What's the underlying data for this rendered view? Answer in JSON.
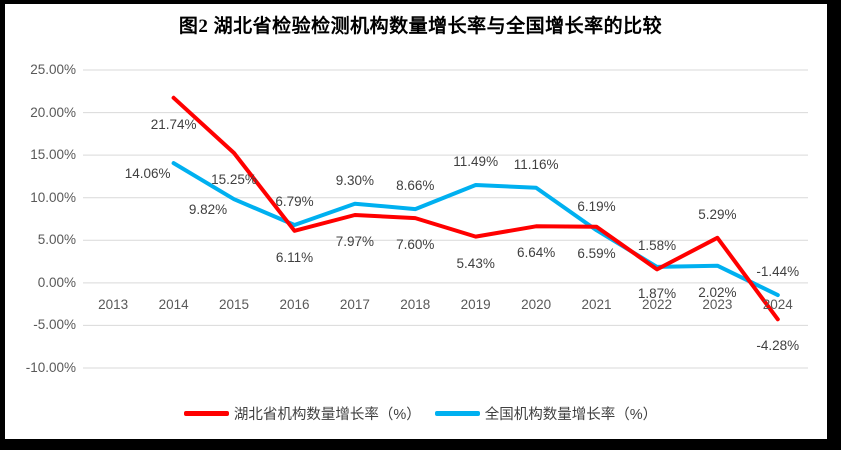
{
  "title": "图2  湖北省检验检测机构数量增长率与全国增长率的比较",
  "chart_data": {
    "type": "line",
    "title": "图2  湖北省检验检测机构数量增长率与全国增长率的比较",
    "categories": [
      "2013",
      "2014",
      "2015",
      "2016",
      "2017",
      "2018",
      "2019",
      "2020",
      "2021",
      "2022",
      "2023",
      "2024"
    ],
    "series": [
      {
        "name": "湖北省机构数量增长率（%）",
        "color": "#FF0000",
        "values": [
          null,
          21.74,
          15.25,
          6.11,
          7.97,
          7.6,
          5.43,
          6.64,
          6.59,
          1.58,
          5.29,
          -4.28
        ],
        "labels": [
          "",
          "21.74%",
          "15.25%",
          "6.11%",
          "7.97%",
          "7.60%",
          "5.43%",
          "6.64%",
          "6.59%",
          "1.58%",
          "5.29%",
          "-4.28%"
        ],
        "label_positions": [
          null,
          "below",
          "below",
          "below",
          "below",
          "below",
          "below",
          "below",
          "below",
          "above",
          "above",
          "below"
        ]
      },
      {
        "name": "全国机构数量增长率（%）",
        "color": "#00B0F0",
        "values": [
          null,
          14.06,
          9.82,
          6.79,
          9.3,
          8.66,
          11.49,
          11.16,
          6.19,
          1.87,
          2.02,
          -1.44
        ],
        "labels": [
          "",
          "14.06%",
          "9.82%",
          "6.79%",
          "9.30%",
          "8.66%",
          "11.49%",
          "11.16%",
          "6.19%",
          "1.87%",
          "2.02%",
          "-1.44%"
        ],
        "label_positions": [
          null,
          "left",
          "left",
          "above",
          "above",
          "above",
          "above",
          "above",
          "above",
          "below",
          "below",
          "above"
        ]
      }
    ],
    "y_axis": {
      "min": -10,
      "max": 25,
      "step": 5,
      "tick_labels": [
        "25.00%",
        "20.00%",
        "15.00%",
        "10.00%",
        "5.00%",
        "0.00%",
        "-5.00%",
        "-10.00%"
      ]
    },
    "grid": true,
    "gridline_color": "#D9D9D9",
    "axis_text_color": "#595959",
    "data_label_color": "#404040",
    "legend_position": "bottom",
    "legend": [
      {
        "label": "湖北省机构数量增长率（%）",
        "color": "#FF0000"
      },
      {
        "label": "全国机构数量增长率（%）",
        "color": "#00B0F0"
      }
    ]
  }
}
